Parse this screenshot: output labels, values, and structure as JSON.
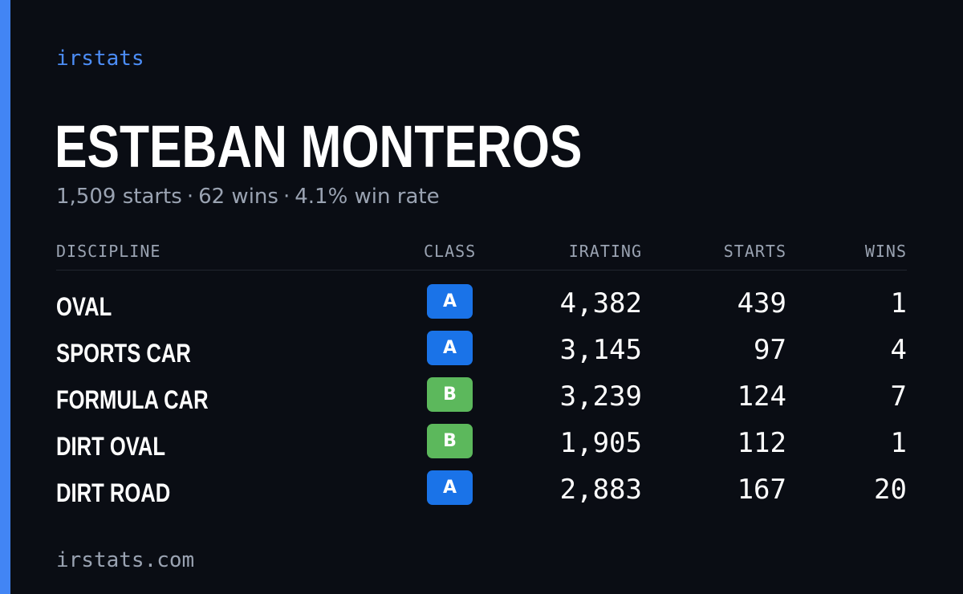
{
  "brand": "irstats",
  "driver": {
    "name": "ESTEBAN MONTEROS",
    "starts_text": "1,509 starts",
    "wins_text": "62 wins",
    "win_rate_text": "4.1% win rate",
    "separator": "·"
  },
  "table": {
    "headers": {
      "discipline": "DISCIPLINE",
      "class": "CLASS",
      "irating": "IRATING",
      "starts": "STARTS",
      "wins": "WINS"
    },
    "rows": [
      {
        "discipline": "OVAL",
        "class": "A",
        "class_color": "#1a73e8",
        "irating": "4,382",
        "starts": "439",
        "wins": "1"
      },
      {
        "discipline": "SPORTS CAR",
        "class": "A",
        "class_color": "#1a73e8",
        "irating": "3,145",
        "starts": "97",
        "wins": "4"
      },
      {
        "discipline": "FORMULA CAR",
        "class": "B",
        "class_color": "#5cb85c",
        "irating": "3,239",
        "starts": "124",
        "wins": "7"
      },
      {
        "discipline": "DIRT OVAL",
        "class": "B",
        "class_color": "#5cb85c",
        "irating": "1,905",
        "starts": "112",
        "wins": "1"
      },
      {
        "discipline": "DIRT ROAD",
        "class": "A",
        "class_color": "#1a73e8",
        "irating": "2,883",
        "starts": "167",
        "wins": "20"
      }
    ]
  },
  "footer": "irstats.com",
  "colors": {
    "background": "#0a0d14",
    "accent": "#4285f4",
    "muted": "#9aa3b2"
  }
}
